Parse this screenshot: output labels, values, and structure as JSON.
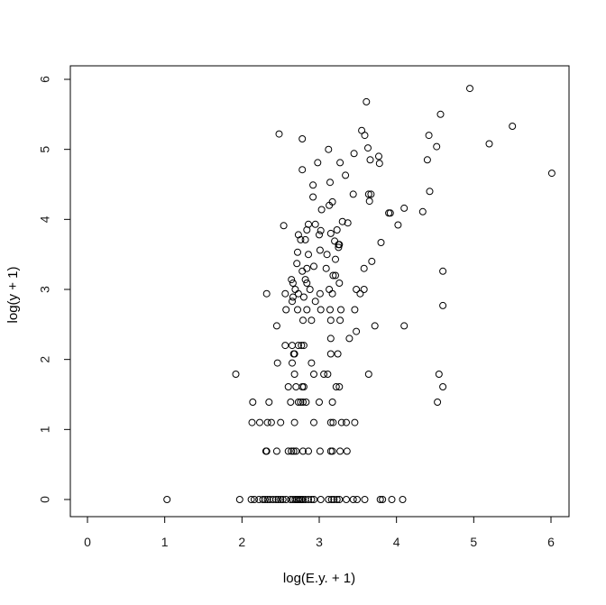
{
  "chart_data": {
    "type": "scatter",
    "title": "",
    "xlabel": "log(E.y. + 1)",
    "ylabel": "log(y + 1)",
    "xlim": [
      -0.25,
      6.2
    ],
    "ylim": [
      -0.25,
      6.1
    ],
    "x_ticks": [
      0,
      1,
      2,
      3,
      4,
      5,
      6
    ],
    "y_ticks": [
      0,
      1,
      2,
      3,
      4,
      5,
      6
    ],
    "grid": false,
    "marker": "open-circle",
    "points": [
      [
        1.03,
        0
      ],
      [
        1.97,
        0
      ],
      [
        2.12,
        0
      ],
      [
        2.16,
        0
      ],
      [
        2.22,
        0
      ],
      [
        2.27,
        0
      ],
      [
        2.3,
        0
      ],
      [
        2.33,
        0
      ],
      [
        2.36,
        0
      ],
      [
        2.4,
        0
      ],
      [
        2.44,
        0
      ],
      [
        2.47,
        0
      ],
      [
        2.5,
        0
      ],
      [
        2.53,
        0
      ],
      [
        2.57,
        0
      ],
      [
        2.63,
        0
      ],
      [
        2.66,
        0
      ],
      [
        2.69,
        0
      ],
      [
        2.71,
        0
      ],
      [
        2.73,
        0
      ],
      [
        2.75,
        0
      ],
      [
        2.77,
        0
      ],
      [
        2.79,
        0
      ],
      [
        2.82,
        0
      ],
      [
        2.86,
        0
      ],
      [
        2.9,
        0
      ],
      [
        2.93,
        0
      ],
      [
        3.02,
        0
      ],
      [
        3.12,
        0
      ],
      [
        3.16,
        0
      ],
      [
        3.19,
        0
      ],
      [
        3.23,
        0
      ],
      [
        3.26,
        0
      ],
      [
        3.35,
        0
      ],
      [
        3.44,
        0
      ],
      [
        3.49,
        0
      ],
      [
        3.59,
        0
      ],
      [
        3.79,
        0
      ],
      [
        3.82,
        0
      ],
      [
        3.94,
        0
      ],
      [
        4.08,
        0
      ],
      [
        2.31,
        0.69
      ],
      [
        2.32,
        0.69
      ],
      [
        2.45,
        0.69
      ],
      [
        2.6,
        0.69
      ],
      [
        2.64,
        0.69
      ],
      [
        2.67,
        0.69
      ],
      [
        2.7,
        0.69
      ],
      [
        2.79,
        0.69
      ],
      [
        2.86,
        0.69
      ],
      [
        3.01,
        0.69
      ],
      [
        3.15,
        0.69
      ],
      [
        3.17,
        0.69
      ],
      [
        3.27,
        0.69
      ],
      [
        3.36,
        0.69
      ],
      [
        2.13,
        1.1
      ],
      [
        2.23,
        1.1
      ],
      [
        2.33,
        1.1
      ],
      [
        2.38,
        1.1
      ],
      [
        2.5,
        1.1
      ],
      [
        2.68,
        1.1
      ],
      [
        2.93,
        1.1
      ],
      [
        3.15,
        1.1
      ],
      [
        3.18,
        1.1
      ],
      [
        3.29,
        1.1
      ],
      [
        3.35,
        1.1
      ],
      [
        3.46,
        1.1
      ],
      [
        2.14,
        1.39
      ],
      [
        2.35,
        1.39
      ],
      [
        2.63,
        1.39
      ],
      [
        2.73,
        1.39
      ],
      [
        2.76,
        1.39
      ],
      [
        2.79,
        1.39
      ],
      [
        2.83,
        1.39
      ],
      [
        3.0,
        1.39
      ],
      [
        3.17,
        1.39
      ],
      [
        4.53,
        1.39
      ],
      [
        2.6,
        1.61
      ],
      [
        2.7,
        1.61
      ],
      [
        2.78,
        1.61
      ],
      [
        2.8,
        1.61
      ],
      [
        3.22,
        1.61
      ],
      [
        3.26,
        1.61
      ],
      [
        4.6,
        1.61
      ],
      [
        1.92,
        1.79
      ],
      [
        2.68,
        1.79
      ],
      [
        2.93,
        1.79
      ],
      [
        3.06,
        1.79
      ],
      [
        3.11,
        1.79
      ],
      [
        3.64,
        1.79
      ],
      [
        4.55,
        1.79
      ],
      [
        2.46,
        1.95
      ],
      [
        2.65,
        1.95
      ],
      [
        2.9,
        1.95
      ],
      [
        2.67,
        2.08
      ],
      [
        2.68,
        2.08
      ],
      [
        3.15,
        2.08
      ],
      [
        3.24,
        2.08
      ],
      [
        2.56,
        2.2
      ],
      [
        2.65,
        2.2
      ],
      [
        2.73,
        2.2
      ],
      [
        2.77,
        2.2
      ],
      [
        2.8,
        2.2
      ],
      [
        3.15,
        2.3
      ],
      [
        3.39,
        2.3
      ],
      [
        3.48,
        2.4
      ],
      [
        2.45,
        2.48
      ],
      [
        3.72,
        2.48
      ],
      [
        4.1,
        2.48
      ],
      [
        2.79,
        2.56
      ],
      [
        2.9,
        2.56
      ],
      [
        3.15,
        2.56
      ],
      [
        3.27,
        2.56
      ],
      [
        2.57,
        2.71
      ],
      [
        2.72,
        2.71
      ],
      [
        2.84,
        2.71
      ],
      [
        3.02,
        2.71
      ],
      [
        3.14,
        2.71
      ],
      [
        3.28,
        2.71
      ],
      [
        3.46,
        2.71
      ],
      [
        4.6,
        2.77
      ],
      [
        2.65,
        2.83
      ],
      [
        2.95,
        2.83
      ],
      [
        2.66,
        2.89
      ],
      [
        2.8,
        2.89
      ],
      [
        2.32,
        2.94
      ],
      [
        2.56,
        2.94
      ],
      [
        2.73,
        2.94
      ],
      [
        3.01,
        2.94
      ],
      [
        3.17,
        2.94
      ],
      [
        3.53,
        2.94
      ],
      [
        2.69,
        3.0
      ],
      [
        2.88,
        3.0
      ],
      [
        3.13,
        3.0
      ],
      [
        3.48,
        3.0
      ],
      [
        3.58,
        3.0
      ],
      [
        2.66,
        3.09
      ],
      [
        2.84,
        3.09
      ],
      [
        3.26,
        3.09
      ],
      [
        2.64,
        3.14
      ],
      [
        2.82,
        3.14
      ],
      [
        3.18,
        3.2
      ],
      [
        3.21,
        3.2
      ],
      [
        2.78,
        3.26
      ],
      [
        2.84,
        3.3
      ],
      [
        3.09,
        3.3
      ],
      [
        3.58,
        3.3
      ],
      [
        4.6,
        3.26
      ],
      [
        2.71,
        3.37
      ],
      [
        2.93,
        3.33
      ],
      [
        3.21,
        3.43
      ],
      [
        3.68,
        3.4
      ],
      [
        2.86,
        3.5
      ],
      [
        3.1,
        3.5
      ],
      [
        3.25,
        3.6
      ],
      [
        3.25,
        3.64
      ],
      [
        2.72,
        3.53
      ],
      [
        3.01,
        3.56
      ],
      [
        3.8,
        3.67
      ],
      [
        2.76,
        3.71
      ],
      [
        2.82,
        3.71
      ],
      [
        3.2,
        3.69
      ],
      [
        3.26,
        3.64
      ],
      [
        2.73,
        3.78
      ],
      [
        3.0,
        3.78
      ],
      [
        3.15,
        3.8
      ],
      [
        2.84,
        3.85
      ],
      [
        3.02,
        3.84
      ],
      [
        3.23,
        3.85
      ],
      [
        2.54,
        3.91
      ],
      [
        2.86,
        3.93
      ],
      [
        2.95,
        3.93
      ],
      [
        3.3,
        3.97
      ],
      [
        3.37,
        3.95
      ],
      [
        3.92,
        4.09
      ],
      [
        3.9,
        4.09
      ],
      [
        4.02,
        3.92
      ],
      [
        3.03,
        4.14
      ],
      [
        3.13,
        4.2
      ],
      [
        3.17,
        4.25
      ],
      [
        4.1,
        4.16
      ],
      [
        4.34,
        4.11
      ],
      [
        2.92,
        4.32
      ],
      [
        3.44,
        4.36
      ],
      [
        3.64,
        4.36
      ],
      [
        3.67,
        4.36
      ],
      [
        3.65,
        4.26
      ],
      [
        4.43,
        4.4
      ],
      [
        2.92,
        4.49
      ],
      [
        3.14,
        4.53
      ],
      [
        2.78,
        4.71
      ],
      [
        3.34,
        4.63
      ],
      [
        3.27,
        4.81
      ],
      [
        2.98,
        4.81
      ],
      [
        3.66,
        4.85
      ],
      [
        3.78,
        4.8
      ],
      [
        3.77,
        4.9
      ],
      [
        4.4,
        4.85
      ],
      [
        3.12,
        5.0
      ],
      [
        3.45,
        4.94
      ],
      [
        3.63,
        5.02
      ],
      [
        4.52,
        5.04
      ],
      [
        4.42,
        5.2
      ],
      [
        5.2,
        5.08
      ],
      [
        2.48,
        5.22
      ],
      [
        2.78,
        5.15
      ],
      [
        3.55,
        5.27
      ],
      [
        3.59,
        5.2
      ],
      [
        5.5,
        5.33
      ],
      [
        3.61,
        5.68
      ],
      [
        4.57,
        5.5
      ],
      [
        4.95,
        5.87
      ],
      [
        6.01,
        4.66
      ]
    ]
  }
}
